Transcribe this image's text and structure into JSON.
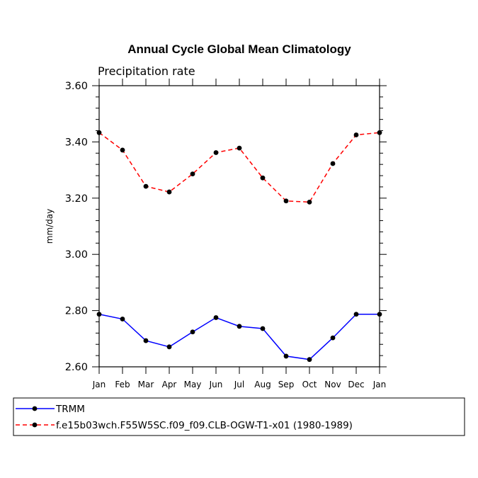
{
  "chart_data": {
    "type": "line",
    "title": "Annual Cycle Global Mean Climatology",
    "subtitle": "Precipitation rate",
    "xlabel": "",
    "ylabel": "mm/day",
    "categories": [
      "Jan",
      "Feb",
      "Mar",
      "Apr",
      "May",
      "Jun",
      "Jul",
      "Aug",
      "Sep",
      "Oct",
      "Nov",
      "Dec",
      "Jan"
    ],
    "ylim": [
      2.6,
      3.6
    ],
    "yticks": [
      "2.60",
      "2.80",
      "3.00",
      "3.20",
      "3.40",
      "3.60"
    ],
    "legend_position": "bottom-left",
    "series": [
      {
        "name": "TRMM",
        "color": "#0000ff",
        "dash": "solid",
        "values": [
          2.787,
          2.77,
          2.693,
          2.671,
          2.724,
          2.775,
          2.744,
          2.736,
          2.638,
          2.626,
          2.703,
          2.787,
          2.787
        ]
      },
      {
        "name": "f.e15b03wch.F55W5SC.f09_f09.CLB-OGW-T1-x01 (1980-1989)",
        "color": "#ff0000",
        "dash": "dashed",
        "values": [
          3.433,
          3.371,
          3.242,
          3.222,
          3.286,
          3.362,
          3.378,
          3.272,
          3.19,
          3.186,
          3.323,
          3.425,
          3.433
        ]
      }
    ]
  }
}
